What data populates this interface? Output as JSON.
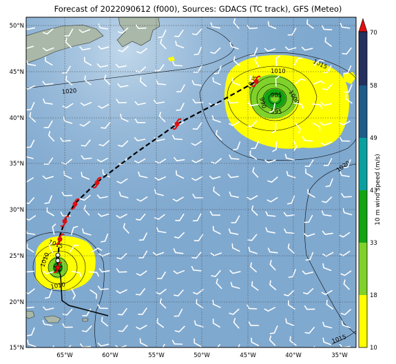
{
  "title": "Forecast of 2022090612 (f000), Sources: GDACS (TC track), GFS (Meteo)",
  "colorbar": {
    "label": "10 m wind speed (m/s)",
    "ticks": [
      "10",
      "18",
      "33",
      "43",
      "49",
      "58",
      "70"
    ],
    "colors": {
      "10-18": "#ffff00",
      "18-33": "#7fd22a",
      "33-43": "#12a412",
      "43-49": "#0aa0a0",
      "49-58": "#1f5c8a",
      "58-70": "#24305e",
      "over": "#e01010"
    }
  },
  "axes": {
    "lon_ticks": [
      "65°W",
      "60°W",
      "55°W",
      "50°W",
      "45°W",
      "40°W",
      "35°W"
    ],
    "lat_ticks": [
      "15°N",
      "20°N",
      "25°N",
      "30°N",
      "35°N",
      "40°N",
      "45°N",
      "50°N"
    ]
  },
  "isobar_labels": [
    "1015",
    "1010",
    "1005",
    "1000",
    "995",
    "990",
    "985",
    "1020",
    "1020",
    "1015",
    "1015",
    "1010",
    "1010"
  ],
  "colors": {
    "ocean": "#80a9cf",
    "land": "#a9b8a8",
    "track": "#000000",
    "hurricane_symbol": "#e01010"
  }
}
